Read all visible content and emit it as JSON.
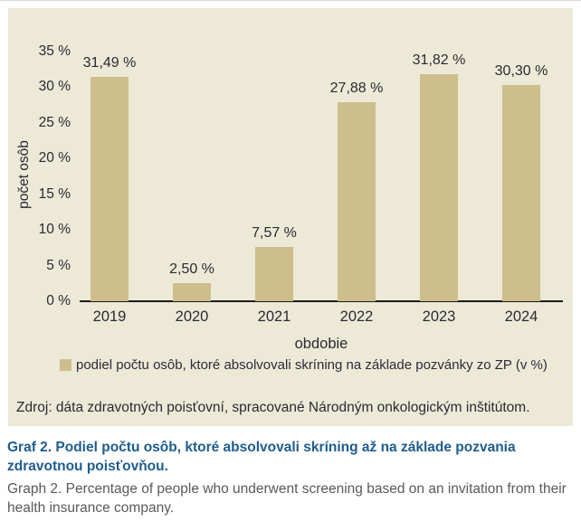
{
  "chart_data": {
    "type": "bar",
    "categories": [
      "2019",
      "2020",
      "2021",
      "2022",
      "2023",
      "2024"
    ],
    "values": [
      31.49,
      2.5,
      7.57,
      27.88,
      31.82,
      30.3
    ],
    "value_labels": [
      "31,49 %",
      "2,50 %",
      "7,57 %",
      "27,88 %",
      "31,82 %",
      "30,30 %"
    ],
    "xlabel": "obdobie",
    "ylabel": "počet osôb",
    "ylim": [
      0,
      35
    ],
    "ytick_step": 5,
    "ytick_labels": [
      "0 %",
      "5 %",
      "10 %",
      "15 %",
      "20 %",
      "25 %",
      "30 %",
      "35 %"
    ],
    "grid": false,
    "bar_color": "#CDBE8C",
    "legend_position": "bottom",
    "legend_entries": [
      "podiel počtu osôb, ktoré absolvovali skríning na základe pozvánky zo ZP (v  %)"
    ],
    "title": ""
  },
  "legend": {
    "label": "podiel počtu osôb, ktoré absolvovali skríning na základe pozvánky zo ZP (v  %)",
    "swatch_color": "#CDBE8C"
  },
  "source": {
    "text": "Zdroj: dáta zdravotných poisťovní, spracované Národným onkologickým inštitútom."
  },
  "caption": {
    "sk": "Graf 2. Podiel počtu osôb, ktoré absolvovali skríning až na základe pozvania zdravotnou poisťovňou.",
    "en": "Graph 2. Percentage of people who underwent screening based on an invitation from their health insurance company.",
    "sk_color": "#1E5C8F",
    "en_color": "#58595B"
  },
  "colors": {
    "panel_bg": "#EDE9D7",
    "bar": "#CDBE8C",
    "text": "#2A2A33",
    "axis": "#1a1a1a"
  }
}
